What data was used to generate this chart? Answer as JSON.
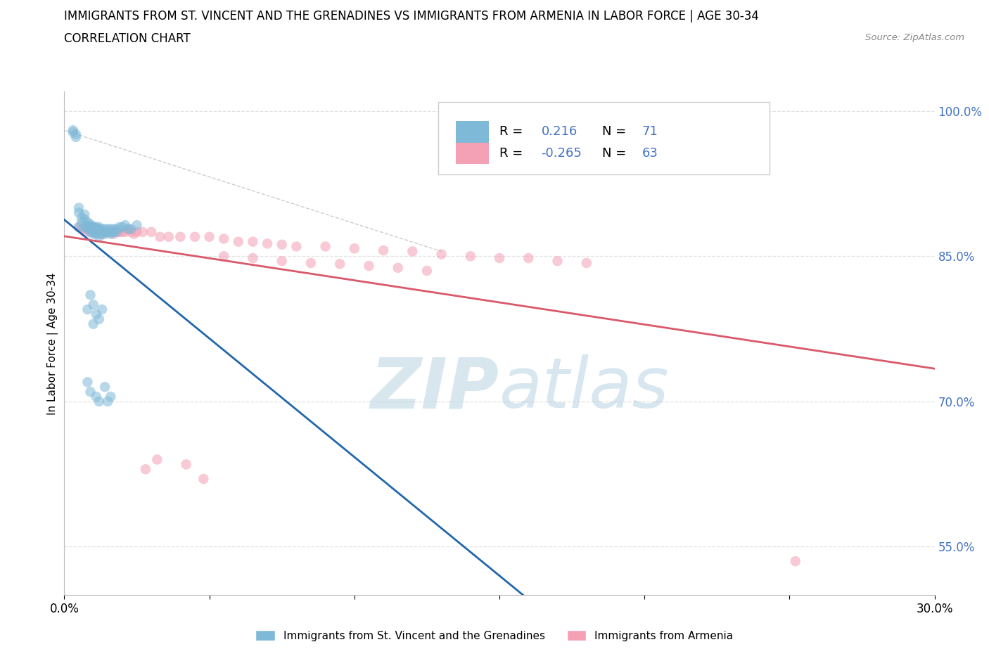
{
  "title_line1": "IMMIGRANTS FROM ST. VINCENT AND THE GRENADINES VS IMMIGRANTS FROM ARMENIA IN LABOR FORCE | AGE 30-34",
  "title_line2": "CORRELATION CHART",
  "source_text": "Source: ZipAtlas.com",
  "ylabel": "In Labor Force | Age 30-34",
  "xlim": [
    0.0,
    0.3
  ],
  "ylim": [
    0.5,
    1.02
  ],
  "ytick_positions": [
    0.55,
    0.7,
    0.85,
    1.0
  ],
  "yticklabels": [
    "55.0%",
    "70.0%",
    "85.0%",
    "100.0%"
  ],
  "blue_color": "#7fb9d8",
  "pink_color": "#f4a0b5",
  "blue_line_color": "#2166ac",
  "pink_line_color": "#d9596a",
  "legend_color": "#4472c4",
  "grid_color": "#dddddd",
  "blue_x": [
    0.003,
    0.003,
    0.004,
    0.004,
    0.005,
    0.005,
    0.005,
    0.006,
    0.006,
    0.007,
    0.007,
    0.007,
    0.008,
    0.008,
    0.008,
    0.008,
    0.009,
    0.009,
    0.009,
    0.009,
    0.009,
    0.01,
    0.01,
    0.01,
    0.01,
    0.01,
    0.01,
    0.011,
    0.011,
    0.011,
    0.011,
    0.012,
    0.012,
    0.012,
    0.012,
    0.012,
    0.013,
    0.013,
    0.013,
    0.014,
    0.014,
    0.014,
    0.015,
    0.015,
    0.016,
    0.016,
    0.016,
    0.017,
    0.017,
    0.018,
    0.018,
    0.019,
    0.02,
    0.021,
    0.022,
    0.023,
    0.025,
    0.008,
    0.009,
    0.01,
    0.01,
    0.011,
    0.012,
    0.013,
    0.008,
    0.009,
    0.011,
    0.012,
    0.014,
    0.015,
    0.016
  ],
  "blue_y": [
    0.978,
    0.98,
    0.973,
    0.976,
    0.88,
    0.895,
    0.9,
    0.885,
    0.89,
    0.88,
    0.888,
    0.893,
    0.882,
    0.885,
    0.88,
    0.878,
    0.88,
    0.883,
    0.878,
    0.875,
    0.88,
    0.88,
    0.878,
    0.875,
    0.873,
    0.88,
    0.878,
    0.875,
    0.878,
    0.88,
    0.873,
    0.875,
    0.878,
    0.88,
    0.875,
    0.87,
    0.875,
    0.873,
    0.878,
    0.875,
    0.878,
    0.873,
    0.878,
    0.875,
    0.875,
    0.873,
    0.878,
    0.875,
    0.878,
    0.878,
    0.875,
    0.88,
    0.88,
    0.882,
    0.878,
    0.878,
    0.882,
    0.795,
    0.81,
    0.8,
    0.78,
    0.79,
    0.785,
    0.795,
    0.72,
    0.71,
    0.705,
    0.7,
    0.715,
    0.7,
    0.705
  ],
  "pink_x": [
    0.005,
    0.006,
    0.007,
    0.008,
    0.008,
    0.009,
    0.009,
    0.01,
    0.01,
    0.011,
    0.011,
    0.012,
    0.012,
    0.013,
    0.013,
    0.014,
    0.015,
    0.016,
    0.017,
    0.018,
    0.019,
    0.02,
    0.021,
    0.022,
    0.023,
    0.024,
    0.025,
    0.027,
    0.03,
    0.033,
    0.036,
    0.04,
    0.045,
    0.05,
    0.055,
    0.06,
    0.065,
    0.07,
    0.075,
    0.08,
    0.09,
    0.1,
    0.11,
    0.12,
    0.13,
    0.14,
    0.15,
    0.16,
    0.17,
    0.18,
    0.055,
    0.065,
    0.075,
    0.085,
    0.095,
    0.105,
    0.115,
    0.125,
    0.028,
    0.032,
    0.042,
    0.048,
    0.252
  ],
  "pink_y": [
    0.88,
    0.878,
    0.875,
    0.88,
    0.878,
    0.878,
    0.875,
    0.88,
    0.875,
    0.878,
    0.875,
    0.878,
    0.873,
    0.875,
    0.873,
    0.875,
    0.875,
    0.875,
    0.873,
    0.875,
    0.875,
    0.875,
    0.875,
    0.878,
    0.875,
    0.873,
    0.875,
    0.875,
    0.875,
    0.87,
    0.87,
    0.87,
    0.87,
    0.87,
    0.868,
    0.865,
    0.865,
    0.863,
    0.862,
    0.86,
    0.86,
    0.858,
    0.856,
    0.855,
    0.852,
    0.85,
    0.848,
    0.848,
    0.845,
    0.843,
    0.85,
    0.848,
    0.845,
    0.843,
    0.842,
    0.84,
    0.838,
    0.835,
    0.63,
    0.64,
    0.635,
    0.62,
    0.535
  ],
  "ref_line_x": [
    0.0,
    0.13
  ],
  "ref_line_y": [
    0.98,
    0.855
  ]
}
